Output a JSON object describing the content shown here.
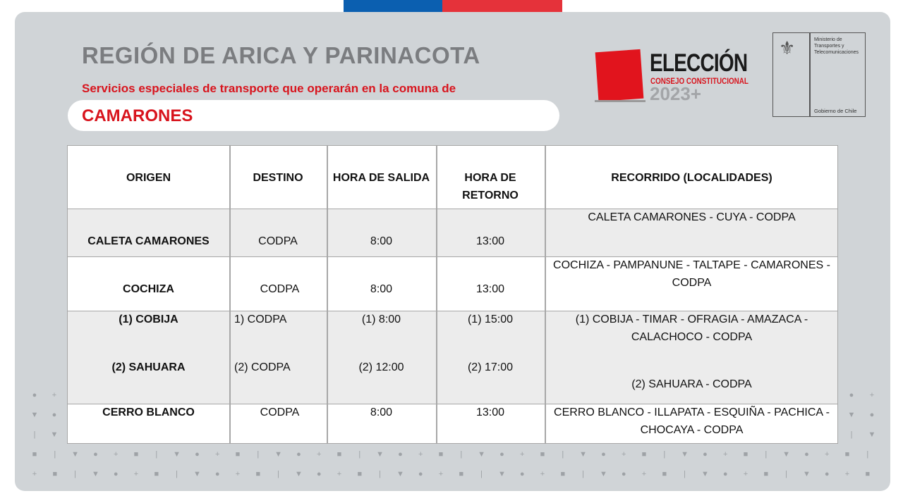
{
  "header": {
    "region": "REGIÓN DE ARICA Y PARINACOTA",
    "subtitle": "Servicios especiales de transporte que operarán en la comuna de",
    "comuna": "CAMARONES"
  },
  "logo": {
    "title": "ELECCIÓN",
    "subtitle": "CONSEJO CONSTITUCIONAL",
    "year": "2023+",
    "ministry": "Ministerio de Transportes y Telecomunicaciones",
    "government": "Gobierno de Chile"
  },
  "colors": {
    "accent_red": "#d8141d",
    "flag_blue": "#0b5fb0",
    "flag_red": "#e5323a",
    "panel": "#d0d4d7"
  },
  "table": {
    "headers": [
      "ORIGEN",
      "DESTINO",
      "HORA DE SALIDA",
      "HORA DE",
      "RETORNO",
      "RECORRIDO (LOCALIDADES)"
    ],
    "rows": [
      {
        "origen": "CALETA CAMARONES",
        "destino": "CODPA",
        "salida": "8:00",
        "retorno": "13:00",
        "recorrido": [
          "CALETA CAMARONES - CUYA - CODPA"
        ]
      },
      {
        "origen": "COCHIZA",
        "destino": "CODPA",
        "salida": "8:00",
        "retorno": "13:00",
        "recorrido": [
          "COCHIZA - PAMPANUNE - TALTAPE - CAMARONES -",
          "CODPA"
        ]
      },
      {
        "origen": [
          "(1) COBIJA",
          "(2) SAHUARA"
        ],
        "destino": [
          "1) CODPA",
          "(2) CODPA"
        ],
        "salida": [
          "(1) 8:00",
          "(2) 12:00"
        ],
        "retorno": [
          "(1) 15:00",
          "(2) 17:00"
        ],
        "recorrido": [
          "(1) COBIJA - TIMAR - OFRAGIA - AMAZACA -",
          "CALACHOCO - CODPA",
          "(2) SAHUARA - CODPA"
        ]
      },
      {
        "origen": "CERRO BLANCO",
        "destino": "CODPA",
        "salida": "8:00",
        "retorno": "13:00",
        "recorrido": [
          "CERRO BLANCO - ILLAPATA - ESQUIÑA - PACHICA -",
          "CHOCAYA - CODPA"
        ]
      }
    ]
  }
}
